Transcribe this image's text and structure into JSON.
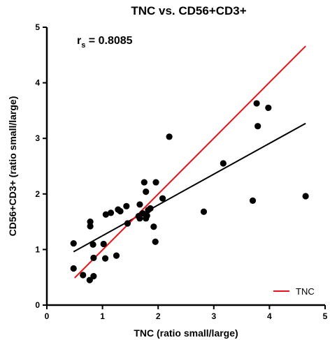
{
  "chart_data": {
    "type": "scatter",
    "title": "TNC vs. CD56+CD3+",
    "xlabel": "TNC (ratio small/large)",
    "ylabel": "CD56+CD3+ (ratio small/large)",
    "xlim": [
      0,
      5
    ],
    "ylim": [
      0,
      5
    ],
    "xticks": [
      "0",
      "1",
      "2",
      "3",
      "4",
      "5"
    ],
    "yticks": [
      "0",
      "1",
      "2",
      "3",
      "4",
      "5"
    ],
    "annotation": {
      "main": "r",
      "sub": "s",
      "rest": " = 0.8085"
    },
    "points": [
      {
        "x": 0.48,
        "y": 1.11
      },
      {
        "x": 0.48,
        "y": 0.66
      },
      {
        "x": 0.65,
        "y": 0.54
      },
      {
        "x": 0.77,
        "y": 0.45
      },
      {
        "x": 0.78,
        "y": 1.5
      },
      {
        "x": 0.78,
        "y": 1.42
      },
      {
        "x": 0.83,
        "y": 1.09
      },
      {
        "x": 0.84,
        "y": 0.85
      },
      {
        "x": 0.84,
        "y": 0.52
      },
      {
        "x": 1.02,
        "y": 1.1
      },
      {
        "x": 1.05,
        "y": 0.84
      },
      {
        "x": 1.06,
        "y": 1.63
      },
      {
        "x": 1.15,
        "y": 1.66
      },
      {
        "x": 1.25,
        "y": 0.89
      },
      {
        "x": 1.28,
        "y": 1.72
      },
      {
        "x": 1.32,
        "y": 1.69
      },
      {
        "x": 1.43,
        "y": 1.78
      },
      {
        "x": 1.45,
        "y": 1.47
      },
      {
        "x": 1.65,
        "y": 1.6
      },
      {
        "x": 1.67,
        "y": 1.81
      },
      {
        "x": 1.67,
        "y": 1.56
      },
      {
        "x": 1.72,
        "y": 1.65
      },
      {
        "x": 1.75,
        "y": 2.21
      },
      {
        "x": 1.78,
        "y": 1.56
      },
      {
        "x": 1.78,
        "y": 2.04
      },
      {
        "x": 1.8,
        "y": 1.61
      },
      {
        "x": 1.82,
        "y": 1.71
      },
      {
        "x": 1.86,
        "y": 1.74
      },
      {
        "x": 1.92,
        "y": 1.41
      },
      {
        "x": 1.95,
        "y": 1.14
      },
      {
        "x": 1.96,
        "y": 2.21
      },
      {
        "x": 2.08,
        "y": 1.92
      },
      {
        "x": 2.2,
        "y": 3.03
      },
      {
        "x": 2.82,
        "y": 1.68
      },
      {
        "x": 3.17,
        "y": 2.55
      },
      {
        "x": 3.7,
        "y": 1.88
      },
      {
        "x": 3.77,
        "y": 3.63
      },
      {
        "x": 3.79,
        "y": 3.22
      },
      {
        "x": 3.98,
        "y": 3.55
      },
      {
        "x": 4.65,
        "y": 1.96
      }
    ],
    "lines": [
      {
        "name": "",
        "color": "#000000",
        "x": [
          0.48,
          4.65
        ],
        "y": [
          0.96,
          3.27
        ]
      },
      {
        "name": "TNC",
        "color": "#e8131a",
        "x": [
          0.5,
          4.65
        ],
        "y": [
          0.49,
          4.66
        ]
      }
    ],
    "legend": {
      "position": "bottom-right",
      "label": "TNC",
      "color": "#e8131a"
    }
  }
}
